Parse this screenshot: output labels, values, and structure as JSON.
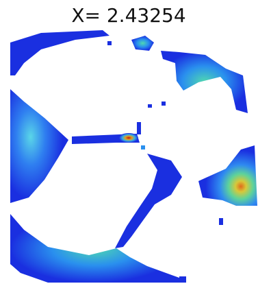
{
  "title": "X= 2.43254"
}
